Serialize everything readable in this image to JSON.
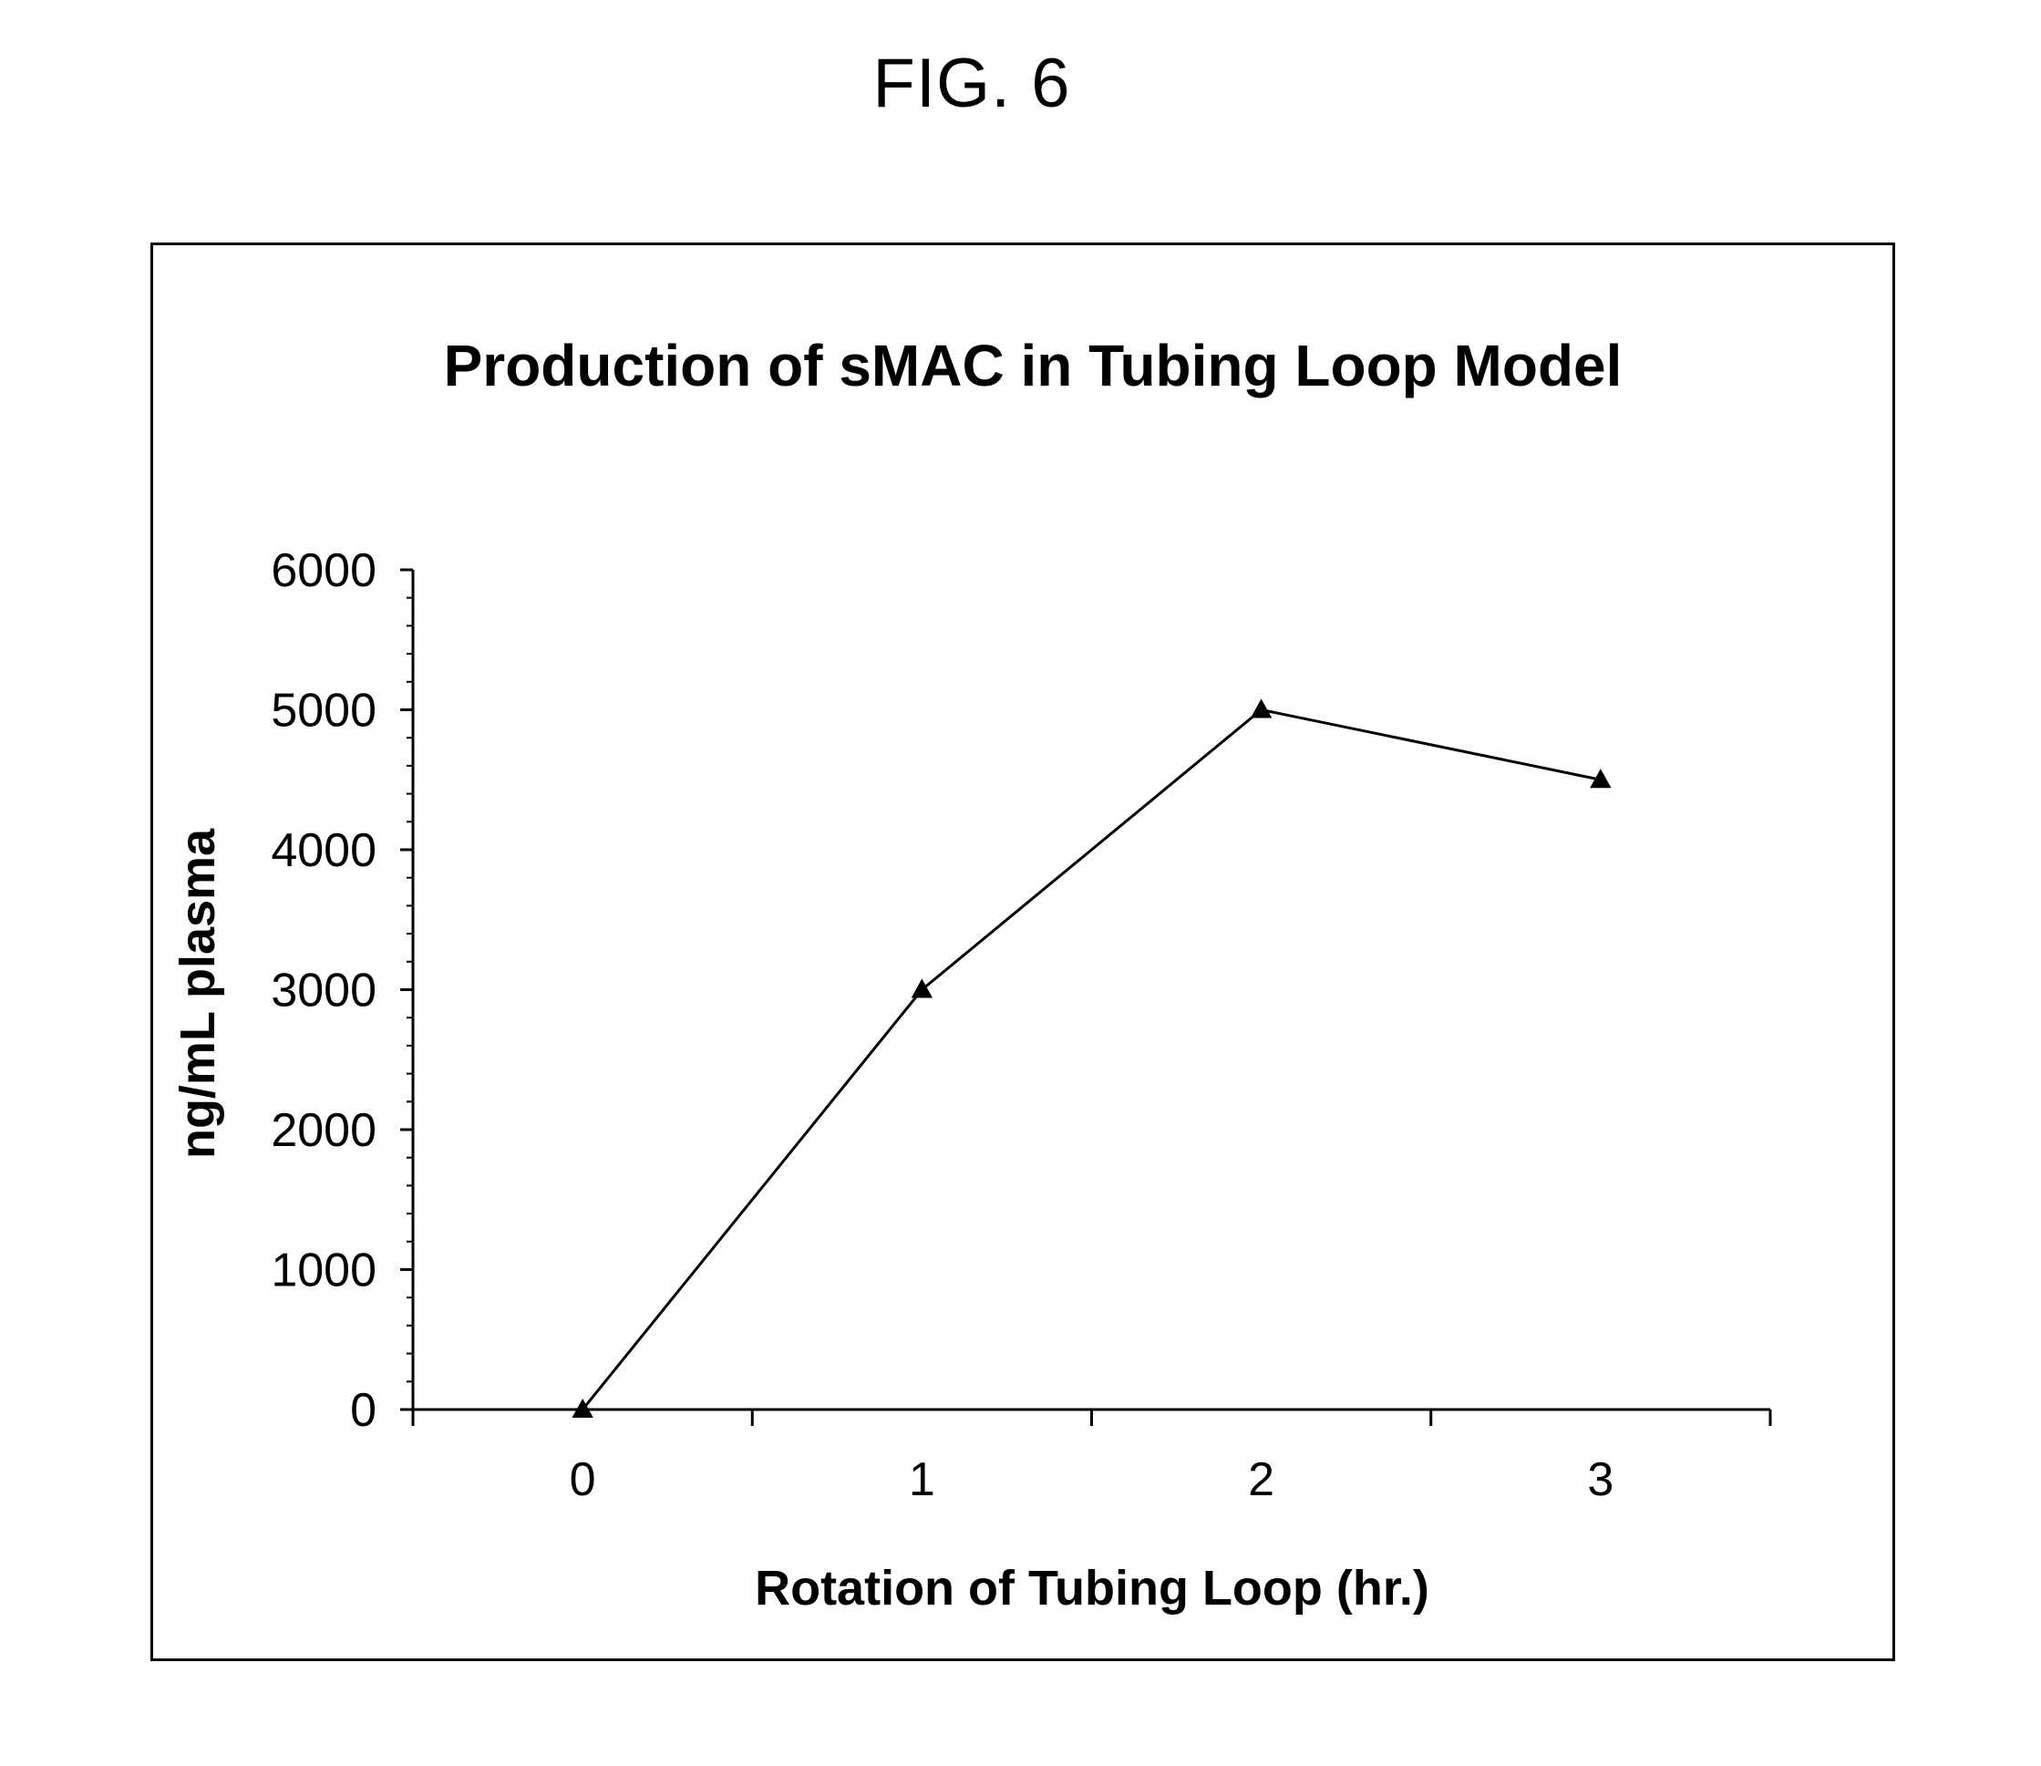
{
  "figure": {
    "label": "FIG. 6"
  },
  "chart_data": {
    "type": "line",
    "title": "Production of sMAC in Tubing Loop Model",
    "xlabel": "Rotation of Tubing Loop (hr.)",
    "ylabel": "ng/mL plasma",
    "x": [
      0,
      1,
      2,
      3
    ],
    "x_tick_labels": [
      "0",
      "1",
      "2",
      "3"
    ],
    "xlim": [
      -0.5,
      3.5
    ],
    "ylim": [
      0,
      6000
    ],
    "y_ticks": [
      0,
      1000,
      2000,
      3000,
      4000,
      5000,
      6000
    ],
    "y_tick_labels": [
      "0",
      "1000",
      "2000",
      "3000",
      "4000",
      "5000",
      "6000"
    ],
    "series": [
      {
        "values": [
          0,
          3000,
          5000,
          4500
        ],
        "marker": "triangle",
        "color": "#000000"
      }
    ],
    "grid": false,
    "legend": "none"
  }
}
